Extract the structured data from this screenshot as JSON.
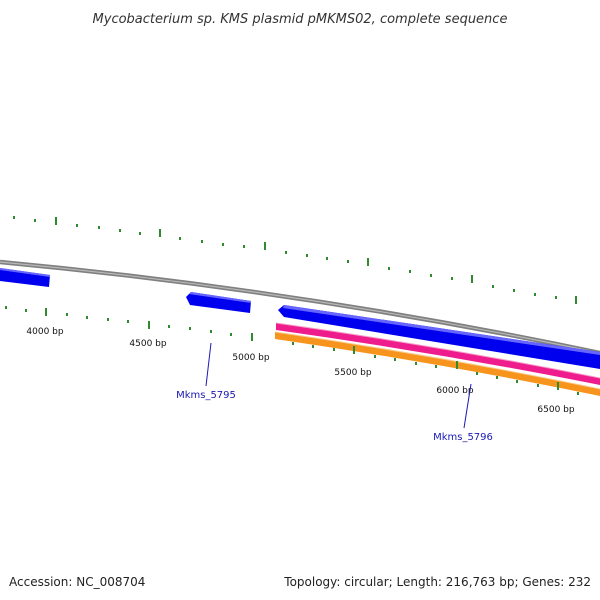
{
  "title": "Mycobacterium sp. KMS plasmid pMKMS02, complete sequence",
  "footer": {
    "accession": "Accession: NC_008704",
    "summary": "Topology: circular; Length: 216,763 bp; Genes: 232"
  },
  "ruler": {
    "labels": [
      "4000 bp",
      "4500 bp",
      "5000 bp",
      "5500 bp",
      "6000 bp",
      "6500 bp"
    ]
  },
  "genes": [
    {
      "name": "Mkms_5795",
      "color": "#1a1ab4"
    },
    {
      "name": "Mkms_5796",
      "color": "#1a1ab4"
    }
  ],
  "colors": {
    "backbone": "#808080",
    "forward_cds": "#0000ee",
    "pink_feature": "#ee1c8c",
    "orange_feature": "#f7941d",
    "tick": "#2e8b2e"
  }
}
